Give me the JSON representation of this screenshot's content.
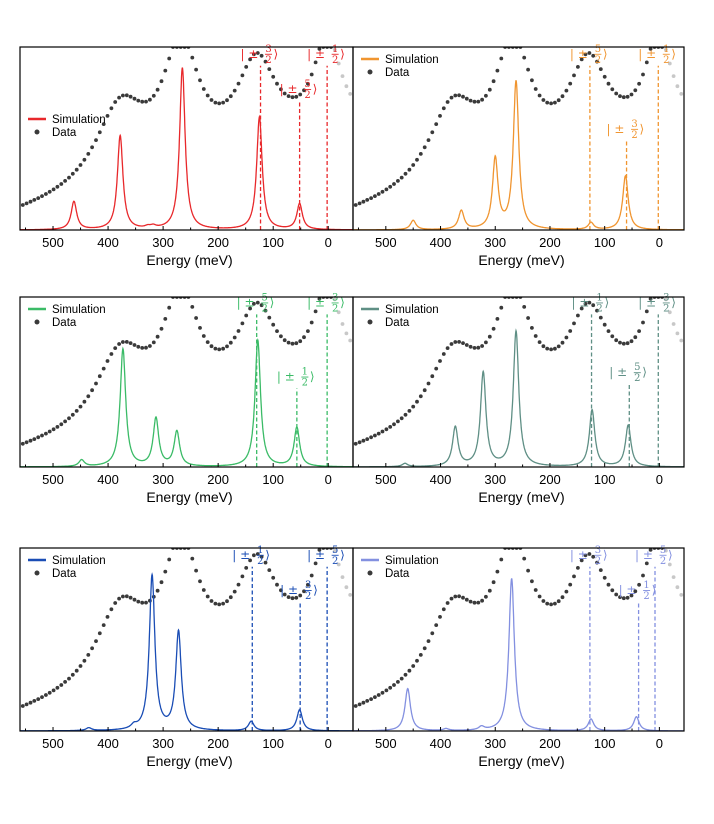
{
  "chart_data": [
    {
      "type": "line",
      "color": "#e8282b",
      "legend": [
        "Simulation",
        "Data"
      ],
      "xlabel": "Energy (meV)",
      "xlim": [
        560,
        -45
      ],
      "xticks": [
        500,
        400,
        300,
        200,
        100,
        0
      ],
      "sim_peaks": [
        [
          462,
          0.12
        ],
        [
          378,
          0.4
        ],
        [
          328,
          0.008
        ],
        [
          318,
          0.01
        ],
        [
          265,
          0.69
        ],
        [
          125,
          0.48
        ],
        [
          52,
          0.11
        ]
      ],
      "levels": [
        {
          "num": "3",
          "x": 123,
          "ymax": 0.7
        },
        {
          "num": "5",
          "x": 52,
          "ymax": 0.55
        },
        {
          "num": "1",
          "x": 2,
          "ymax": 0.7
        }
      ]
    },
    {
      "type": "line",
      "color": "#f09530",
      "legend": [
        "Simulation",
        "Data"
      ],
      "xlabel": "Energy (meV)",
      "xlim": [
        560,
        -45
      ],
      "xticks": [
        500,
        400,
        300,
        200,
        100,
        0
      ],
      "sim_peaks": [
        [
          450,
          0.04
        ],
        [
          362,
          0.08
        ],
        [
          300,
          0.3
        ],
        [
          262,
          0.63
        ],
        [
          125,
          0.03
        ],
        [
          62,
          0.23
        ]
      ],
      "levels": [
        {
          "num": "5",
          "x": 127,
          "ymax": 0.7
        },
        {
          "num": "3",
          "x": 60,
          "ymax": 0.38
        },
        {
          "num": "1",
          "x": 2,
          "ymax": 0.7
        }
      ]
    },
    {
      "type": "line",
      "color": "#3bbb67",
      "legend": [
        "Simulation",
        "Data"
      ],
      "xlabel": "Energy (meV)",
      "xlim": [
        560,
        -45
      ],
      "xticks": [
        500,
        400,
        300,
        200,
        100,
        0
      ],
      "sim_peaks": [
        [
          448,
          0.03
        ],
        [
          373,
          0.54
        ],
        [
          313,
          0.22
        ],
        [
          275,
          0.16
        ],
        [
          128,
          0.58
        ],
        [
          57,
          0.18
        ]
      ],
      "levels": [
        {
          "num": "5",
          "x": 130,
          "ymax": 0.7
        },
        {
          "num": "1",
          "x": 57,
          "ymax": 0.36
        },
        {
          "num": "3",
          "x": 2,
          "ymax": 0.7
        }
      ]
    },
    {
      "type": "line",
      "color": "#5f8f85",
      "legend": [
        "Simulation",
        "Data"
      ],
      "xlabel": "Energy (meV)",
      "xlim": [
        560,
        -45
      ],
      "xticks": [
        500,
        400,
        300,
        200,
        100,
        0
      ],
      "sim_peaks": [
        [
          465,
          0.015
        ],
        [
          373,
          0.18
        ],
        [
          322,
          0.43
        ],
        [
          262,
          0.62
        ],
        [
          123,
          0.26
        ],
        [
          57,
          0.19
        ]
      ],
      "levels": [
        {
          "num": "1",
          "x": 124,
          "ymax": 0.7
        },
        {
          "num": "5",
          "x": 55,
          "ymax": 0.38
        },
        {
          "num": "3",
          "x": 2,
          "ymax": 0.7
        }
      ]
    },
    {
      "type": "line",
      "color": "#1a4db5",
      "legend": [
        "Simulation",
        "Data"
      ],
      "xlabel": "Energy (meV)",
      "xlim": [
        560,
        -45
      ],
      "xticks": [
        500,
        400,
        300,
        200,
        100,
        0
      ],
      "sim_peaks": [
        [
          435,
          0.012
        ],
        [
          353,
          0.015
        ],
        [
          320,
          0.66
        ],
        [
          272,
          0.42
        ],
        [
          140,
          0.04
        ],
        [
          52,
          0.09
        ]
      ],
      "levels": [
        {
          "num": "1",
          "x": 138,
          "ymax": 0.7
        },
        {
          "num": "3",
          "x": 51,
          "ymax": 0.55
        },
        {
          "num": "5",
          "x": 2,
          "ymax": 0.7
        }
      ]
    },
    {
      "type": "line",
      "color": "#8390e0",
      "legend": [
        "Simulation",
        "Data"
      ],
      "xlabel": "Energy (meV)",
      "xlim": [
        560,
        -45
      ],
      "xticks": [
        500,
        400,
        300,
        200,
        100,
        0
      ],
      "sim_peaks": [
        [
          460,
          0.18
        ],
        [
          390,
          0.008
        ],
        [
          325,
          0.015
        ],
        [
          270,
          0.65
        ],
        [
          125,
          0.05
        ],
        [
          42,
          0.06
        ]
      ],
      "levels": [
        {
          "num": "3",
          "x": 127,
          "ymax": 0.7
        },
        {
          "num": "1",
          "x": 38,
          "ymax": 0.55
        },
        {
          "num": "5",
          "x": 8,
          "ymax": 0.7
        }
      ]
    }
  ],
  "data_peaks": [
    [
      378,
      0.33
    ],
    [
      268,
      0.5
    ],
    [
      130,
      0.37
    ],
    [
      2,
      0.4
    ]
  ],
  "data_baseline": [
    0.06,
    0.00058
  ],
  "data_dip_center": 55,
  "labels": {
    "simulation": "Simulation",
    "data": "Data",
    "xlabel": "Energy (meV)",
    "state_prefix": "| ±",
    "state_suffix": "⟩",
    "frac_den": "2"
  },
  "colors": {
    "data_dots": "#3a3a3a",
    "data_fade": "#c8c8c8"
  }
}
